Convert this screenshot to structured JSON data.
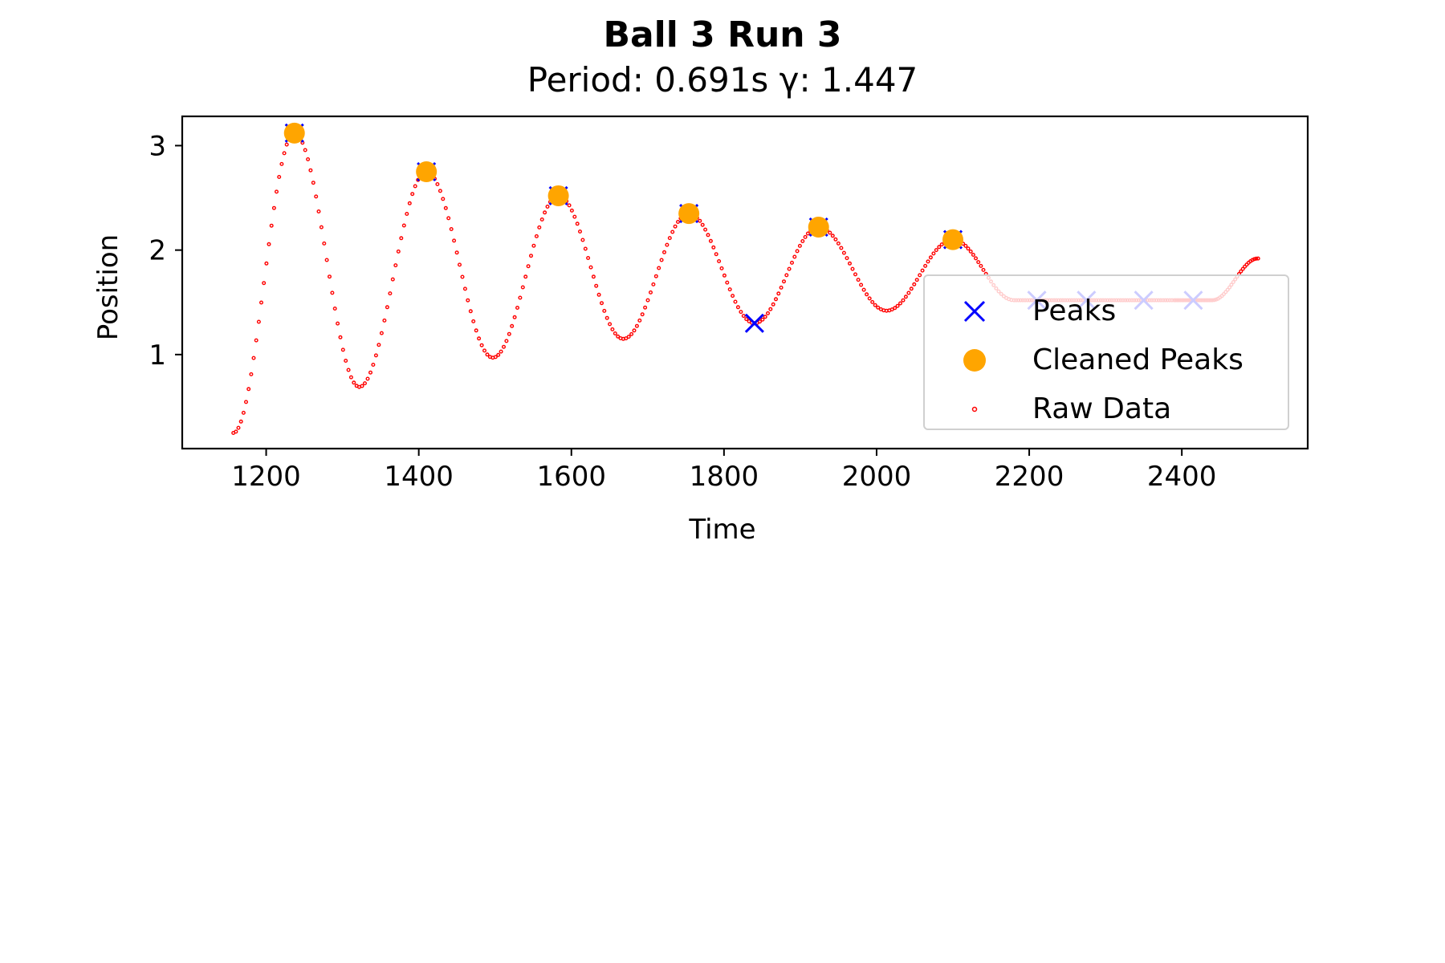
{
  "chart_data": {
    "type": "scatter",
    "title": "Ball 3 Run 3",
    "subtitle": "Period: 0.691s γ: 1.447",
    "xlabel": "Time",
    "ylabel": "Position",
    "xlim": [
      1090,
      2565
    ],
    "ylim": [
      0.1,
      3.28
    ],
    "x_ticks": [
      1200,
      1400,
      1600,
      1800,
      2000,
      2200,
      2400
    ],
    "y_ticks": [
      1,
      2,
      3
    ],
    "grid": false,
    "legend_position": "right",
    "colors": {
      "peaks": "#0000ff",
      "cleaned_peaks": "#ffa500",
      "raw_data": "#ff0000"
    },
    "raw_data_waypoints": [
      [
        1157,
        0.25
      ],
      [
        1237,
        3.12
      ],
      [
        1322,
        0.69
      ],
      [
        1410,
        2.75
      ],
      [
        1497,
        0.97
      ],
      [
        1583,
        2.52
      ],
      [
        1668,
        1.15
      ],
      [
        1754,
        2.35
      ],
      [
        1840,
        1.3
      ],
      [
        1924,
        2.22
      ],
      [
        2013,
        1.42
      ],
      [
        2100,
        2.1
      ],
      [
        2180,
        1.52
      ],
      [
        2250,
        1.52
      ],
      [
        2320,
        1.52
      ],
      [
        2390,
        1.52
      ],
      [
        2440,
        1.52
      ],
      [
        2500,
        1.92
      ]
    ],
    "series": [
      {
        "name": "Peaks",
        "marker": "x",
        "color": "#0000ff",
        "x": [
          1237,
          1410,
          1583,
          1754,
          1840,
          1924,
          2100,
          2210,
          2275,
          2350,
          2415
        ],
        "y": [
          3.12,
          2.75,
          2.52,
          2.35,
          1.3,
          2.22,
          2.1,
          1.52,
          1.52,
          1.52,
          1.52
        ]
      },
      {
        "name": "Cleaned Peaks",
        "marker": "circle",
        "color": "#ffa500",
        "x": [
          1237,
          1410,
          1583,
          1754,
          1924,
          2100
        ],
        "y": [
          3.12,
          2.75,
          2.52,
          2.35,
          2.22,
          2.1
        ]
      },
      {
        "name": "Raw Data",
        "marker": "dot",
        "color": "#ff0000"
      }
    ]
  }
}
